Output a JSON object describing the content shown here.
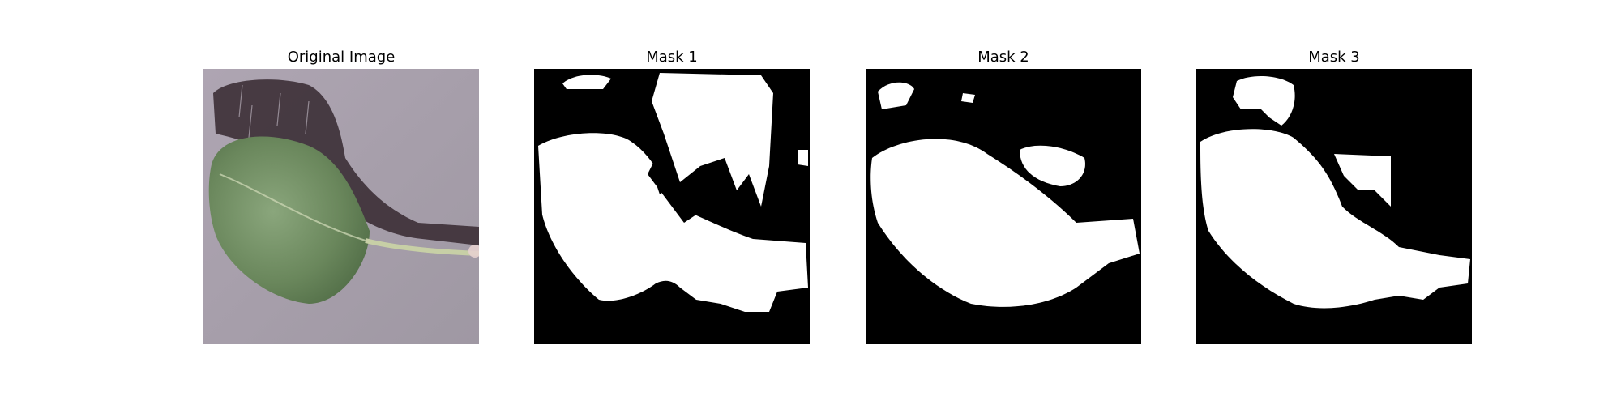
{
  "panels": [
    {
      "title": "Original Image"
    },
    {
      "title": "Mask 1"
    },
    {
      "title": "Mask 2"
    },
    {
      "title": "Mask 3"
    }
  ],
  "colors": {
    "mask_foreground": "#ffffff",
    "mask_background": "#000000",
    "ground": "#a9a1ad",
    "leaf": "#6f8c5f",
    "shadow": "#3e3138",
    "stem": "#c7cfa6"
  }
}
